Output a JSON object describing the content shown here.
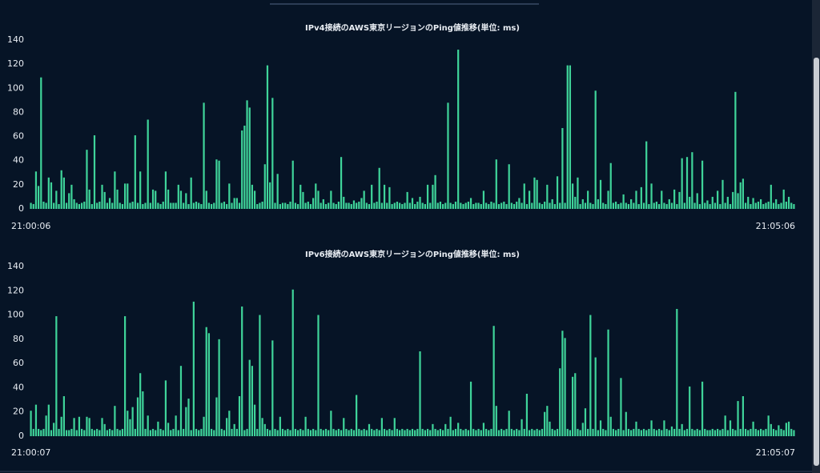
{
  "chart_data": [
    {
      "type": "bar",
      "title": "IPv4接続のAWS東京リージョンのPing値推移(単位: ms)",
      "color": "#3fd49a",
      "grid": false,
      "xlim": [
        -0.5,
        300.5
      ],
      "xticks": [
        {
          "value": 0,
          "label": "21:00:06"
        },
        {
          "value": 300,
          "label": "21:05:06"
        }
      ],
      "ylim": [
        0,
        140
      ],
      "yticks": [
        0,
        20,
        40,
        60,
        80,
        100,
        120,
        140
      ],
      "values": [
        5,
        4,
        31,
        19,
        109,
        6,
        5,
        26,
        22,
        5,
        15,
        4,
        32,
        26,
        5,
        13,
        20,
        8,
        5,
        4,
        5,
        6,
        49,
        16,
        4,
        61,
        5,
        6,
        20,
        14,
        5,
        9,
        5,
        31,
        16,
        5,
        4,
        21,
        21,
        5,
        6,
        61,
        5,
        31,
        4,
        5,
        74,
        5,
        16,
        15,
        5,
        4,
        6,
        31,
        16,
        5,
        5,
        5,
        20,
        15,
        5,
        13,
        4,
        26,
        5,
        6,
        5,
        4,
        88,
        15,
        5,
        4,
        5,
        41,
        40,
        5,
        6,
        4,
        21,
        5,
        9,
        9,
        5,
        65,
        69,
        90,
        84,
        20,
        15,
        4,
        5,
        6,
        37,
        119,
        22,
        92,
        5,
        29,
        4,
        5,
        5,
        4,
        6,
        40,
        5,
        4,
        20,
        14,
        5,
        6,
        4,
        9,
        21,
        15,
        5,
        8,
        4,
        5,
        15,
        5,
        4,
        6,
        43,
        10,
        5,
        5,
        4,
        7,
        5,
        6,
        9,
        15,
        5,
        4,
        20,
        5,
        6,
        34,
        5,
        20,
        5,
        18,
        4,
        5,
        6,
        5,
        4,
        5,
        14,
        5,
        9,
        4,
        6,
        10,
        5,
        4,
        20,
        5,
        20,
        28,
        5,
        6,
        4,
        5,
        88,
        5,
        4,
        6,
        132,
        5,
        4,
        5,
        6,
        9,
        4,
        5,
        5,
        4,
        15,
        5,
        4,
        6,
        5,
        41,
        4,
        5,
        6,
        4,
        37,
        5,
        4,
        6,
        9,
        5,
        21,
        4,
        15,
        5,
        26,
        24,
        5,
        4,
        6,
        20,
        5,
        8,
        4,
        27,
        5,
        67,
        5,
        119,
        119,
        21,
        10,
        26,
        4,
        8,
        5,
        15,
        5,
        4,
        98,
        8,
        24,
        5,
        4,
        15,
        38,
        5,
        6,
        4,
        5,
        12,
        5,
        4,
        8,
        5,
        15,
        4,
        18,
        5,
        56,
        4,
        21,
        5,
        6,
        4,
        15,
        5,
        4,
        8,
        5,
        16,
        4,
        14,
        42,
        5,
        43,
        10,
        47,
        5,
        13,
        4,
        40,
        5,
        7,
        4,
        10,
        5,
        15,
        4,
        24,
        5,
        10,
        4,
        14,
        97,
        13,
        22,
        25,
        5,
        10,
        4,
        9,
        5,
        6,
        8,
        4,
        5,
        6,
        20,
        5,
        8,
        4,
        5,
        16,
        6,
        10,
        5,
        4
      ]
    },
    {
      "type": "bar",
      "title": "IPv6接続のAWS東京リージョンのPing値推移(単位: ms)",
      "color": "#3fd49a",
      "grid": false,
      "xlim": [
        -0.5,
        300.5
      ],
      "xticks": [
        {
          "value": 0,
          "label": "21:00:07"
        },
        {
          "value": 300,
          "label": "21:05:07"
        }
      ],
      "ylim": [
        0,
        140
      ],
      "yticks": [
        0,
        20,
        40,
        60,
        80,
        100,
        120,
        140
      ],
      "values": [
        21,
        6,
        26,
        6,
        5,
        6,
        17,
        26,
        5,
        11,
        99,
        6,
        16,
        33,
        5,
        5,
        6,
        15,
        5,
        16,
        6,
        5,
        16,
        15,
        6,
        5,
        6,
        5,
        15,
        10,
        5,
        6,
        5,
        25,
        6,
        5,
        6,
        99,
        21,
        14,
        24,
        6,
        32,
        52,
        37,
        6,
        17,
        5,
        6,
        5,
        12,
        6,
        5,
        46,
        11,
        5,
        6,
        17,
        5,
        58,
        6,
        24,
        31,
        5,
        111,
        6,
        5,
        6,
        16,
        90,
        85,
        6,
        5,
        32,
        80,
        6,
        5,
        15,
        21,
        6,
        10,
        6,
        33,
        107,
        5,
        6,
        63,
        58,
        26,
        6,
        100,
        15,
        10,
        6,
        5,
        79,
        6,
        5,
        16,
        6,
        5,
        6,
        5,
        121,
        6,
        5,
        6,
        5,
        16,
        6,
        5,
        6,
        5,
        100,
        6,
        5,
        6,
        5,
        21,
        6,
        5,
        6,
        5,
        15,
        6,
        5,
        6,
        5,
        34,
        6,
        5,
        6,
        5,
        10,
        6,
        5,
        6,
        5,
        15,
        6,
        5,
        6,
        5,
        15,
        6,
        5,
        6,
        5,
        6,
        5,
        6,
        5,
        6,
        70,
        6,
        5,
        6,
        5,
        10,
        6,
        5,
        6,
        5,
        10,
        6,
        16,
        5,
        6,
        11,
        6,
        5,
        6,
        5,
        45,
        6,
        5,
        6,
        5,
        11,
        6,
        5,
        6,
        91,
        25,
        5,
        6,
        5,
        6,
        21,
        6,
        5,
        6,
        5,
        14,
        6,
        35,
        5,
        6,
        5,
        6,
        5,
        6,
        20,
        25,
        12,
        6,
        5,
        6,
        56,
        87,
        81,
        6,
        5,
        49,
        52,
        6,
        5,
        11,
        23,
        6,
        100,
        6,
        65,
        5,
        13,
        6,
        5,
        88,
        16,
        6,
        5,
        6,
        48,
        5,
        20,
        6,
        5,
        6,
        12,
        6,
        5,
        6,
        5,
        6,
        13,
        6,
        5,
        6,
        5,
        13,
        6,
        5,
        8,
        6,
        105,
        6,
        10,
        5,
        6,
        41,
        6,
        5,
        6,
        5,
        45,
        6,
        5,
        5,
        6,
        5,
        6,
        5,
        6,
        17,
        5,
        13,
        6,
        5,
        29,
        6,
        33,
        6,
        5,
        6,
        12,
        6,
        5,
        6,
        5,
        6,
        17,
        10,
        6,
        5,
        9,
        6,
        5,
        11,
        12,
        6,
        5
      ]
    }
  ]
}
